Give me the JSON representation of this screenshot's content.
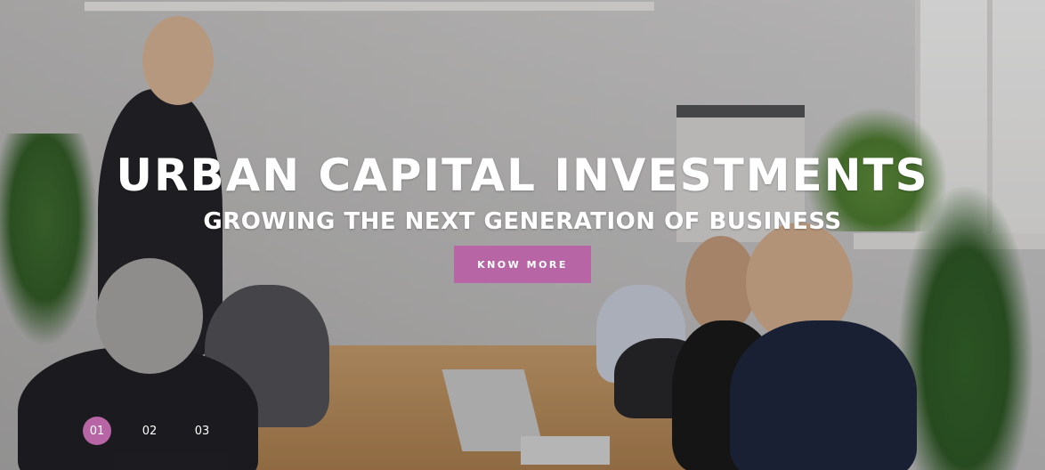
{
  "hero": {
    "title": "URBAN CAPITAL INVESTMENTS",
    "subtitle": "GROWING THE NEXT GENERATION OF BUSINESS",
    "cta_label": "KNOW MORE",
    "background_image": "business-meeting-photo",
    "accent_color": "#b865a6"
  },
  "slider": {
    "pages": [
      {
        "label": "01",
        "active": true
      },
      {
        "label": "02",
        "active": false
      },
      {
        "label": "03",
        "active": false
      }
    ]
  }
}
